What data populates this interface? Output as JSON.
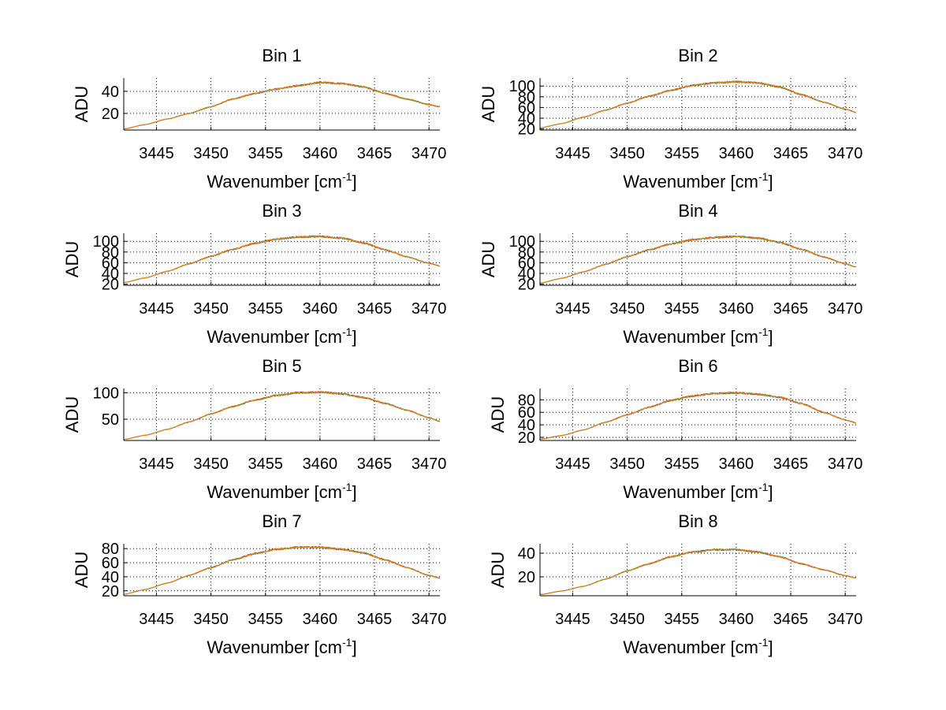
{
  "chart_data": [
    {
      "type": "line",
      "title": "Bin 1",
      "xlabel": "Wavenumber [cm",
      "xlabel_sup": "-1",
      "xlabel_end": "]",
      "ylabel": "ADU",
      "xlim": [
        3442,
        3471
      ],
      "ylim": [
        5,
        52
      ],
      "xticks": [
        3445,
        3450,
        3455,
        3460,
        3465,
        3470
      ],
      "yticks": [
        20,
        40
      ],
      "grid": true,
      "x": [
        3442,
        3444,
        3446,
        3448,
        3450,
        3452,
        3454,
        3456,
        3458,
        3460,
        3462,
        3464,
        3466,
        3468,
        3470,
        3471
      ],
      "series": [
        {
          "color": "#1f4fd8",
          "values": [
            6,
            10,
            15,
            20,
            26,
            33,
            38,
            42,
            45,
            48,
            47,
            44,
            38,
            33,
            28,
            26
          ]
        },
        {
          "color": "#d62728",
          "values": [
            6,
            10,
            15,
            20,
            26,
            33,
            38,
            42,
            45,
            48,
            47,
            44,
            38,
            33,
            28,
            26
          ]
        },
        {
          "color": "#2ca02c",
          "values": [
            6,
            10,
            15,
            20,
            26,
            33,
            38,
            42,
            45,
            48,
            47,
            44,
            38,
            33,
            28,
            26
          ]
        },
        {
          "color": "#ff7f0e",
          "values": [
            6,
            10,
            15,
            20,
            26,
            33,
            38,
            42,
            45,
            48,
            47,
            44,
            38,
            33,
            28,
            26
          ]
        }
      ]
    },
    {
      "type": "line",
      "title": "Bin 2",
      "xlabel": "Wavenumber [cm",
      "xlabel_sup": "-1",
      "xlabel_end": "]",
      "ylabel": "ADU",
      "xlim": [
        3442,
        3471
      ],
      "ylim": [
        18,
        115
      ],
      "xticks": [
        3445,
        3450,
        3455,
        3460,
        3465,
        3470
      ],
      "yticks": [
        20,
        40,
        60,
        80,
        100
      ],
      "grid": true,
      "x": [
        3442,
        3444,
        3446,
        3448,
        3450,
        3452,
        3454,
        3456,
        3458,
        3460,
        3462,
        3464,
        3466,
        3468,
        3470,
        3471
      ],
      "series": [
        {
          "color": "#1f4fd8",
          "values": [
            22,
            30,
            42,
            55,
            68,
            81,
            92,
            101,
            106,
            108,
            106,
            98,
            84,
            70,
            57,
            51
          ]
        },
        {
          "color": "#d62728",
          "values": [
            22,
            30,
            42,
            55,
            68,
            81,
            92,
            101,
            106,
            108,
            106,
            98,
            84,
            70,
            57,
            51
          ]
        },
        {
          "color": "#2ca02c",
          "values": [
            22,
            30,
            42,
            55,
            68,
            81,
            92,
            101,
            106,
            108,
            106,
            98,
            84,
            70,
            57,
            51
          ]
        },
        {
          "color": "#ff7f0e",
          "values": [
            22,
            30,
            42,
            55,
            68,
            81,
            92,
            101,
            106,
            108,
            106,
            98,
            84,
            70,
            57,
            51
          ]
        }
      ]
    },
    {
      "type": "line",
      "title": "Bin 3",
      "xlabel": "Wavenumber [cm",
      "xlabel_sup": "-1",
      "xlabel_end": "]",
      "ylabel": "ADU",
      "xlim": [
        3442,
        3471
      ],
      "ylim": [
        18,
        115
      ],
      "xticks": [
        3445,
        3450,
        3455,
        3460,
        3465,
        3470
      ],
      "yticks": [
        20,
        40,
        60,
        80,
        100
      ],
      "grid": true,
      "x": [
        3442,
        3444,
        3446,
        3448,
        3450,
        3452,
        3454,
        3456,
        3458,
        3460,
        3462,
        3464,
        3466,
        3468,
        3470,
        3471
      ],
      "series": [
        {
          "color": "#1f4fd8",
          "values": [
            23,
            32,
            44,
            58,
            72,
            85,
            96,
            104,
            108,
            109,
            106,
            97,
            84,
            71,
            59,
            54
          ]
        },
        {
          "color": "#d62728",
          "values": [
            23,
            32,
            44,
            58,
            72,
            85,
            96,
            104,
            108,
            109,
            106,
            97,
            84,
            71,
            59,
            54
          ]
        },
        {
          "color": "#2ca02c",
          "values": [
            23,
            32,
            44,
            58,
            72,
            85,
            96,
            104,
            108,
            109,
            106,
            97,
            84,
            71,
            59,
            54
          ]
        },
        {
          "color": "#ff7f0e",
          "values": [
            23,
            32,
            44,
            58,
            72,
            85,
            96,
            104,
            108,
            109,
            106,
            97,
            84,
            71,
            59,
            54
          ]
        }
      ]
    },
    {
      "type": "line",
      "title": "Bin 4",
      "xlabel": "Wavenumber [cm",
      "xlabel_sup": "-1",
      "xlabel_end": "]",
      "ylabel": "ADU",
      "xlim": [
        3442,
        3471
      ],
      "ylim": [
        18,
        115
      ],
      "xticks": [
        3445,
        3450,
        3455,
        3460,
        3465,
        3470
      ],
      "yticks": [
        20,
        40,
        60,
        80,
        100
      ],
      "grid": true,
      "x": [
        3442,
        3444,
        3446,
        3448,
        3450,
        3452,
        3454,
        3456,
        3458,
        3460,
        3462,
        3464,
        3466,
        3468,
        3470,
        3471
      ],
      "series": [
        {
          "color": "#1f4fd8",
          "values": [
            22,
            31,
            43,
            57,
            71,
            84,
            95,
            103,
            107,
            109,
            106,
            98,
            85,
            71,
            58,
            52
          ]
        },
        {
          "color": "#d62728",
          "values": [
            22,
            31,
            43,
            57,
            71,
            84,
            95,
            103,
            107,
            109,
            106,
            98,
            85,
            71,
            58,
            52
          ]
        },
        {
          "color": "#2ca02c",
          "values": [
            22,
            31,
            43,
            57,
            71,
            84,
            95,
            103,
            107,
            109,
            106,
            98,
            85,
            71,
            58,
            52
          ]
        },
        {
          "color": "#ff7f0e",
          "values": [
            22,
            31,
            43,
            57,
            71,
            84,
            95,
            103,
            107,
            109,
            106,
            98,
            85,
            71,
            58,
            52
          ]
        }
      ]
    },
    {
      "type": "line",
      "title": "Bin 5",
      "xlabel": "Wavenumber [cm",
      "xlabel_sup": "-1",
      "xlabel_end": "]",
      "ylabel": "ADU",
      "xlim": [
        3442,
        3471
      ],
      "ylim": [
        10,
        108
      ],
      "xticks": [
        3445,
        3450,
        3455,
        3460,
        3465,
        3470
      ],
      "yticks": [
        50,
        100
      ],
      "grid": true,
      "x": [
        3442,
        3444,
        3446,
        3448,
        3450,
        3452,
        3454,
        3456,
        3458,
        3460,
        3462,
        3464,
        3466,
        3468,
        3470,
        3471
      ],
      "series": [
        {
          "color": "#1f4fd8",
          "values": [
            12,
            20,
            31,
            45,
            60,
            74,
            86,
            95,
            100,
            101,
            98,
            91,
            80,
            67,
            53,
            46
          ]
        },
        {
          "color": "#d62728",
          "values": [
            12,
            20,
            31,
            45,
            60,
            74,
            86,
            95,
            100,
            101,
            98,
            91,
            80,
            67,
            53,
            46
          ]
        },
        {
          "color": "#2ca02c",
          "values": [
            12,
            20,
            31,
            45,
            60,
            74,
            86,
            95,
            100,
            101,
            98,
            91,
            80,
            67,
            53,
            46
          ]
        },
        {
          "color": "#ff7f0e",
          "values": [
            12,
            20,
            31,
            45,
            60,
            74,
            86,
            95,
            100,
            101,
            98,
            91,
            80,
            67,
            53,
            46
          ]
        }
      ]
    },
    {
      "type": "line",
      "title": "Bin 6",
      "xlabel": "Wavenumber [cm",
      "xlabel_sup": "-1",
      "xlabel_end": "]",
      "ylabel": "ADU",
      "xlim": [
        3442,
        3471
      ],
      "ylim": [
        15,
        98
      ],
      "xticks": [
        3445,
        3450,
        3455,
        3460,
        3465,
        3470
      ],
      "yticks": [
        20,
        40,
        60,
        80
      ],
      "grid": true,
      "x": [
        3442,
        3444,
        3446,
        3448,
        3450,
        3452,
        3454,
        3456,
        3458,
        3460,
        3462,
        3464,
        3466,
        3468,
        3470,
        3471
      ],
      "series": [
        {
          "color": "#1f4fd8",
          "values": [
            17,
            23,
            32,
            44,
            56,
            68,
            79,
            86,
            90,
            91,
            89,
            84,
            74,
            60,
            48,
            43
          ]
        },
        {
          "color": "#d62728",
          "values": [
            17,
            23,
            32,
            44,
            56,
            68,
            79,
            86,
            90,
            91,
            89,
            84,
            74,
            60,
            48,
            43
          ]
        },
        {
          "color": "#2ca02c",
          "values": [
            17,
            23,
            32,
            44,
            56,
            68,
            79,
            86,
            90,
            91,
            89,
            84,
            74,
            60,
            48,
            43
          ]
        },
        {
          "color": "#ff7f0e",
          "values": [
            17,
            23,
            32,
            44,
            56,
            68,
            79,
            86,
            90,
            91,
            89,
            84,
            74,
            60,
            48,
            43
          ]
        }
      ]
    },
    {
      "type": "line",
      "title": "Bin 7",
      "xlabel": "Wavenumber [cm",
      "xlabel_sup": "-1",
      "xlabel_end": "]",
      "ylabel": "ADU",
      "xlim": [
        3442,
        3471
      ],
      "ylim": [
        13,
        87
      ],
      "xticks": [
        3445,
        3450,
        3455,
        3460,
        3465,
        3470
      ],
      "yticks": [
        20,
        40,
        60,
        80
      ],
      "grid": true,
      "x": [
        3442,
        3444,
        3446,
        3448,
        3450,
        3452,
        3454,
        3456,
        3458,
        3460,
        3462,
        3464,
        3466,
        3468,
        3470,
        3471
      ],
      "series": [
        {
          "color": "#1f4fd8",
          "values": [
            15,
            22,
            31,
            42,
            53,
            64,
            73,
            79,
            82,
            82,
            79,
            74,
            64,
            53,
            42,
            38
          ]
        },
        {
          "color": "#d62728",
          "values": [
            15,
            22,
            31,
            42,
            53,
            64,
            73,
            79,
            82,
            82,
            79,
            74,
            64,
            53,
            42,
            38
          ]
        },
        {
          "color": "#2ca02c",
          "values": [
            15,
            22,
            31,
            42,
            53,
            64,
            73,
            79,
            82,
            82,
            79,
            74,
            64,
            53,
            42,
            38
          ]
        },
        {
          "color": "#ff7f0e",
          "values": [
            15,
            22,
            31,
            42,
            53,
            64,
            73,
            79,
            82,
            82,
            79,
            74,
            64,
            53,
            42,
            38
          ]
        }
      ]
    },
    {
      "type": "line",
      "title": "Bin 8",
      "xlabel": "Wavenumber [cm",
      "xlabel_sup": "-1",
      "xlabel_end": "]",
      "ylabel": "ADU",
      "xlim": [
        3442,
        3471
      ],
      "ylim": [
        4,
        48
      ],
      "xticks": [
        3445,
        3450,
        3455,
        3460,
        3465,
        3470
      ],
      "yticks": [
        20,
        40
      ],
      "grid": true,
      "x": [
        3442,
        3444,
        3446,
        3448,
        3450,
        3452,
        3454,
        3456,
        3458,
        3460,
        3462,
        3464,
        3466,
        3468,
        3470,
        3471
      ],
      "series": [
        {
          "color": "#1f4fd8",
          "values": [
            5,
            8,
            12,
            18,
            25,
            31,
            37,
            41,
            43,
            43,
            41,
            37,
            31,
            26,
            21,
            19
          ]
        },
        {
          "color": "#d62728",
          "values": [
            5,
            8,
            12,
            18,
            25,
            31,
            37,
            41,
            43,
            43,
            41,
            37,
            31,
            26,
            21,
            19
          ]
        },
        {
          "color": "#2ca02c",
          "values": [
            5,
            8,
            12,
            18,
            25,
            31,
            37,
            41,
            43,
            43,
            41,
            37,
            31,
            26,
            21,
            19
          ]
        },
        {
          "color": "#ff7f0e",
          "values": [
            5,
            8,
            12,
            18,
            25,
            31,
            37,
            41,
            43,
            43,
            41,
            37,
            31,
            26,
            21,
            19
          ]
        }
      ]
    }
  ]
}
